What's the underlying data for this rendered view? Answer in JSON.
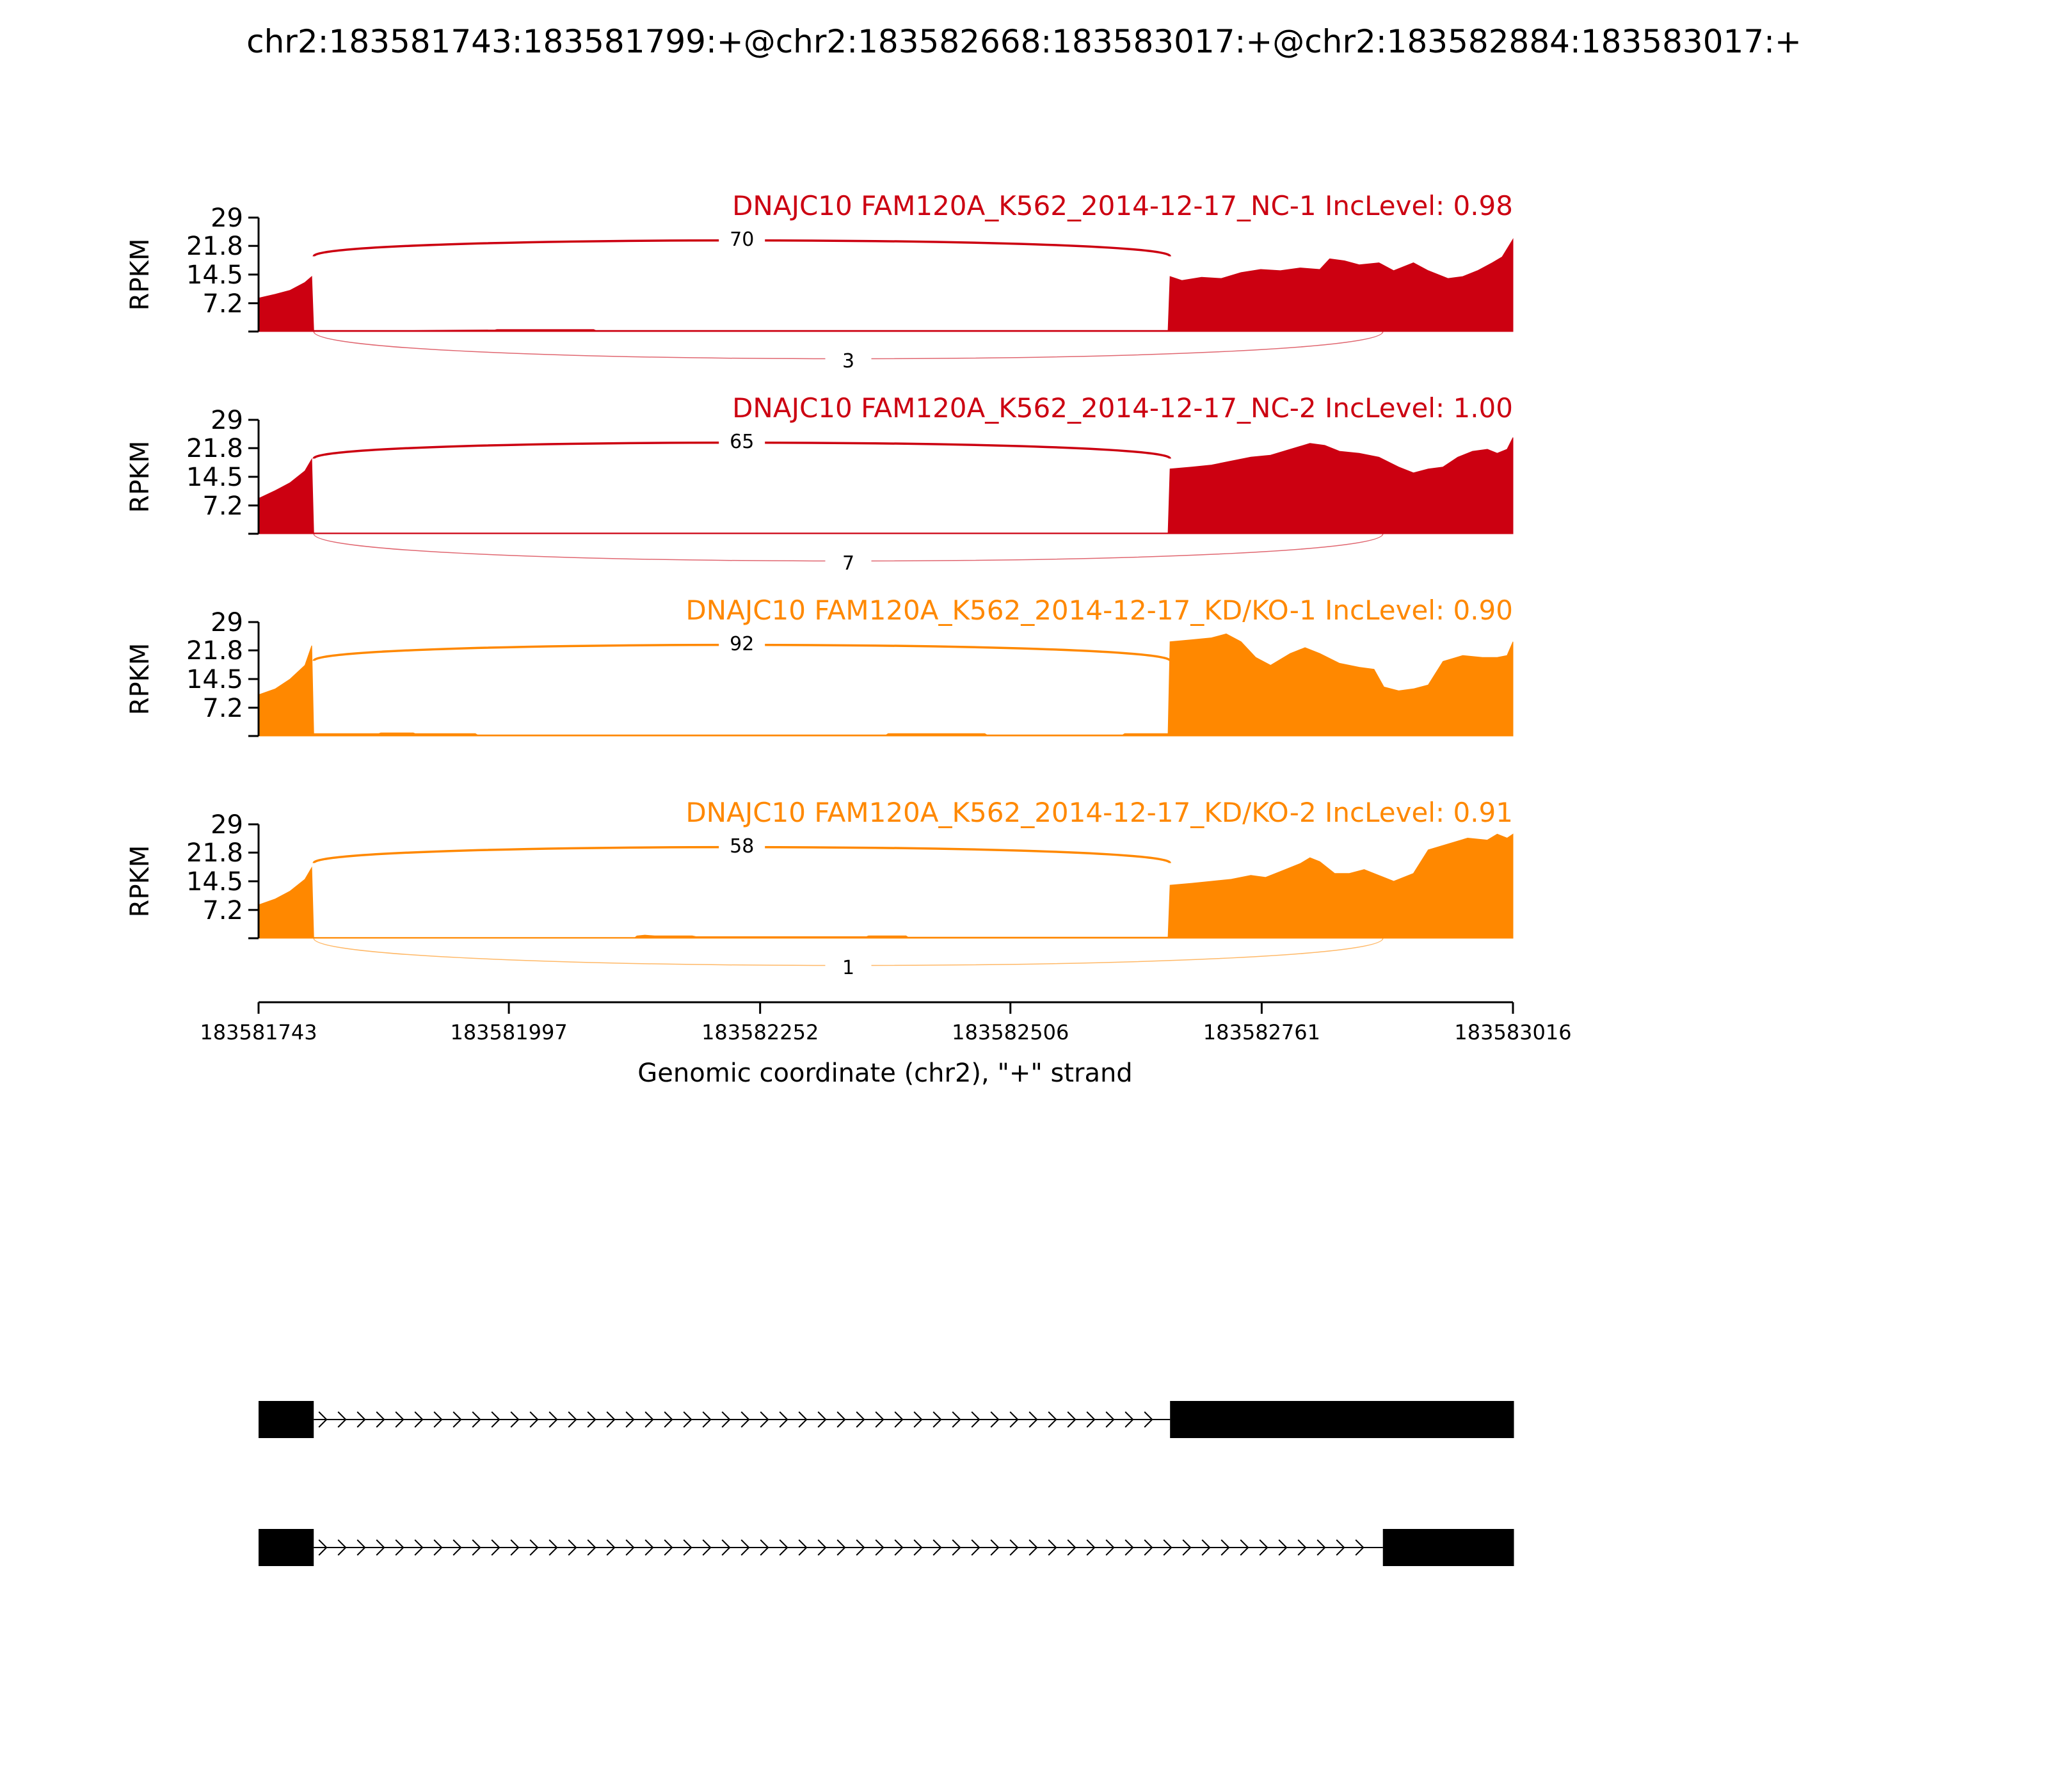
{
  "chart_data": {
    "type": "area",
    "title": "chr2:183581743:183581799:+@chr2:183582668:183583017:+@chr2:183582884:183583017:+",
    "ylabel": "RPKM",
    "xlabel": "Genomic coordinate (chr2), \"+\" strand",
    "xlim": [
      183581743,
      183583016
    ],
    "ylim": [
      0,
      29
    ],
    "yticks": [
      "29",
      "21.8",
      "14.5",
      "7.2"
    ],
    "xticks": [
      "183581743",
      "183581997",
      "183582252",
      "183582506",
      "183582761",
      "183583016"
    ],
    "exons": [
      [
        183581743,
        183581799
      ],
      [
        183582668,
        183583017
      ],
      [
        183582884,
        183583017
      ]
    ],
    "series": [
      {
        "name": "DNAJC10 FAM120A_K562_2014-12-17_NC-1 IncLevel: 0.98",
        "color": "#cc0011",
        "junctions": [
          {
            "from": 183581799,
            "to": 183582668,
            "count": "70",
            "side": "top"
          },
          {
            "from": 183581799,
            "to": 183582884,
            "count": "3",
            "side": "bottom"
          }
        ],
        "coverage": [
          [
            183581743,
            8.5
          ],
          [
            183581760,
            9.5
          ],
          [
            183581775,
            10.5
          ],
          [
            183581790,
            12.5
          ],
          [
            183581797,
            14.0
          ],
          [
            183581799,
            0.3
          ],
          [
            183581900,
            0.3
          ],
          [
            183581983,
            0.4
          ],
          [
            183581985,
            0.5
          ],
          [
            183582083,
            0.5
          ],
          [
            183582085,
            0.3
          ],
          [
            183582666,
            0.3
          ],
          [
            183582668,
            14.0
          ],
          [
            183582680,
            13.0
          ],
          [
            183582700,
            13.8
          ],
          [
            183582720,
            13.5
          ],
          [
            183582740,
            15.0
          ],
          [
            183582760,
            15.8
          ],
          [
            183582780,
            15.5
          ],
          [
            183582800,
            16.2
          ],
          [
            183582820,
            15.8
          ],
          [
            183582830,
            18.5
          ],
          [
            183582845,
            18.0
          ],
          [
            183582860,
            17.0
          ],
          [
            183582880,
            17.5
          ],
          [
            183582895,
            15.5
          ],
          [
            183582915,
            17.5
          ],
          [
            183582930,
            15.5
          ],
          [
            183582950,
            13.5
          ],
          [
            183582965,
            14.0
          ],
          [
            183582980,
            15.5
          ],
          [
            183582995,
            17.5
          ],
          [
            183583005,
            19.0
          ],
          [
            183583016,
            23.5
          ]
        ]
      },
      {
        "name": "DNAJC10 FAM120A_K562_2014-12-17_NC-2 IncLevel: 1.00",
        "color": "#cc0011",
        "junctions": [
          {
            "from": 183581799,
            "to": 183582668,
            "count": "65",
            "side": "top"
          },
          {
            "from": 183581799,
            "to": 183582884,
            "count": "7",
            "side": "bottom"
          }
        ],
        "coverage": [
          [
            183581743,
            9.0
          ],
          [
            183581760,
            11.0
          ],
          [
            183581775,
            13.0
          ],
          [
            183581790,
            16.0
          ],
          [
            183581797,
            19.0
          ],
          [
            183581799,
            0.2
          ],
          [
            183582666,
            0.2
          ],
          [
            183582668,
            16.5
          ],
          [
            183582690,
            17.0
          ],
          [
            183582710,
            17.5
          ],
          [
            183582730,
            18.5
          ],
          [
            183582750,
            19.5
          ],
          [
            183582770,
            20.0
          ],
          [
            183582790,
            21.5
          ],
          [
            183582810,
            23.0
          ],
          [
            183582825,
            22.5
          ],
          [
            183582840,
            21.0
          ],
          [
            183582860,
            20.5
          ],
          [
            183582880,
            19.5
          ],
          [
            183582900,
            17.0
          ],
          [
            183582915,
            15.5
          ],
          [
            183582930,
            16.5
          ],
          [
            183582945,
            17.0
          ],
          [
            183582960,
            19.5
          ],
          [
            183582975,
            21.0
          ],
          [
            183582990,
            21.5
          ],
          [
            183583000,
            20.5
          ],
          [
            183583010,
            21.5
          ],
          [
            183583016,
            24.5
          ]
        ]
      },
      {
        "name": "DNAJC10 FAM120A_K562_2014-12-17_KD/KO-1 IncLevel: 0.90",
        "color": "#ff8800",
        "junctions": [
          {
            "from": 183581799,
            "to": 183582668,
            "count": "92",
            "side": "top"
          }
        ],
        "coverage": [
          [
            183581743,
            10.5
          ],
          [
            183581760,
            12.0
          ],
          [
            183581775,
            14.5
          ],
          [
            183581790,
            18.0
          ],
          [
            183581797,
            23.0
          ],
          [
            183581799,
            0.6
          ],
          [
            183581865,
            0.6
          ],
          [
            183581867,
            0.8
          ],
          [
            183581900,
            0.8
          ],
          [
            183581902,
            0.6
          ],
          [
            183581963,
            0.6
          ],
          [
            183581965,
            0.3
          ],
          [
            183582380,
            0.3
          ],
          [
            183582382,
            0.6
          ],
          [
            183582480,
            0.6
          ],
          [
            183582482,
            0.3
          ],
          [
            183582620,
            0.3
          ],
          [
            183582622,
            0.6
          ],
          [
            183582666,
            0.6
          ],
          [
            183582668,
            24.0
          ],
          [
            183582690,
            24.5
          ],
          [
            183582710,
            25.0
          ],
          [
            183582725,
            26.0
          ],
          [
            183582740,
            24.0
          ],
          [
            183582755,
            20.0
          ],
          [
            183582770,
            18.0
          ],
          [
            183582790,
            21.0
          ],
          [
            183582805,
            22.5
          ],
          [
            183582820,
            21.0
          ],
          [
            183582840,
            18.5
          ],
          [
            183582860,
            17.5
          ],
          [
            183582875,
            17.0
          ],
          [
            183582885,
            12.5
          ],
          [
            183582900,
            11.5
          ],
          [
            183582915,
            12.0
          ],
          [
            183582930,
            13.0
          ],
          [
            183582945,
            19.0
          ],
          [
            183582965,
            20.5
          ],
          [
            183582985,
            20.0
          ],
          [
            183583000,
            20.0
          ],
          [
            183583010,
            20.5
          ],
          [
            183583016,
            24.0
          ]
        ]
      },
      {
        "name": "DNAJC10 FAM120A_K562_2014-12-17_KD/KO-2 IncLevel: 0.91",
        "color": "#ff8800",
        "junctions": [
          {
            "from": 183581799,
            "to": 183582668,
            "count": "58",
            "side": "top"
          },
          {
            "from": 183581799,
            "to": 183582884,
            "count": "1",
            "side": "bottom"
          }
        ],
        "coverage": [
          [
            183581743,
            8.5
          ],
          [
            183581760,
            10.0
          ],
          [
            183581775,
            12.0
          ],
          [
            183581790,
            15.0
          ],
          [
            183581797,
            18.0
          ],
          [
            183581799,
            0.2
          ],
          [
            183582125,
            0.2
          ],
          [
            183582127,
            0.6
          ],
          [
            183582135,
            0.8
          ],
          [
            183582145,
            0.6
          ],
          [
            183582183,
            0.6
          ],
          [
            183582187,
            0.4
          ],
          [
            183582360,
            0.4
          ],
          [
            183582362,
            0.6
          ],
          [
            183582400,
            0.6
          ],
          [
            183582402,
            0.3
          ],
          [
            183582666,
            0.3
          ],
          [
            183582668,
            13.5
          ],
          [
            183582690,
            14.0
          ],
          [
            183582710,
            14.5
          ],
          [
            183582730,
            15.0
          ],
          [
            183582750,
            16.0
          ],
          [
            183582765,
            15.5
          ],
          [
            183582780,
            17.0
          ],
          [
            183582800,
            19.0
          ],
          [
            183582810,
            20.5
          ],
          [
            183582820,
            19.5
          ],
          [
            183582835,
            16.5
          ],
          [
            183582850,
            16.5
          ],
          [
            183582865,
            17.5
          ],
          [
            183582880,
            16.0
          ],
          [
            183582895,
            14.5
          ],
          [
            183582915,
            16.5
          ],
          [
            183582930,
            22.5
          ],
          [
            183582950,
            24.0
          ],
          [
            183582970,
            25.5
          ],
          [
            183582990,
            25.0
          ],
          [
            183583000,
            26.5
          ],
          [
            183583010,
            25.5
          ],
          [
            183583016,
            26.5
          ]
        ]
      }
    ],
    "isoforms": [
      {
        "exons": [
          [
            183581743,
            183581799
          ],
          [
            183582668,
            183583017
          ]
        ]
      },
      {
        "exons": [
          [
            183581743,
            183581799
          ],
          [
            183582884,
            183583017
          ]
        ]
      }
    ]
  }
}
